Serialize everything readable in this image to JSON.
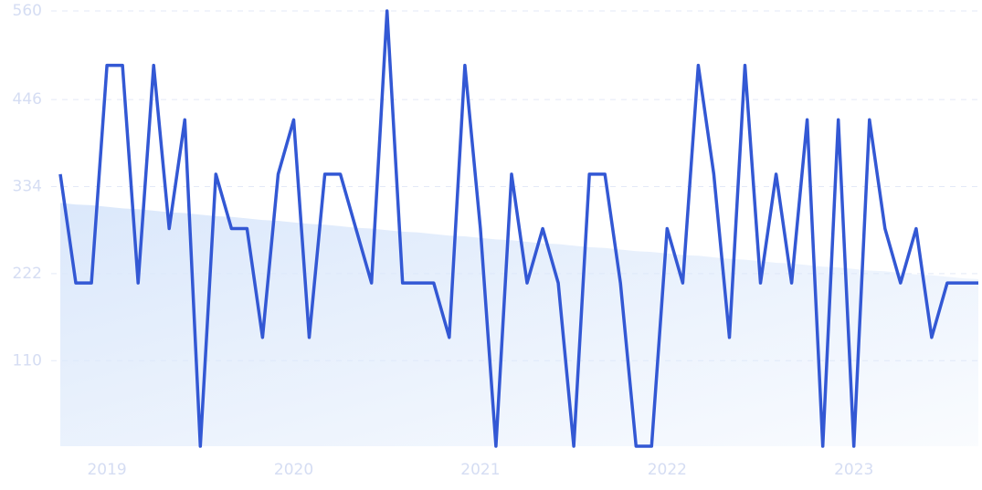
{
  "chart_data": {
    "type": "line",
    "categories": [
      null,
      null,
      null,
      "2019",
      null,
      null,
      null,
      null,
      null,
      null,
      null,
      null,
      null,
      null,
      null,
      "2020",
      null,
      null,
      null,
      null,
      null,
      null,
      null,
      null,
      null,
      null,
      null,
      "2021",
      null,
      null,
      null,
      null,
      null,
      null,
      null,
      null,
      null,
      null,
      null,
      "2022",
      null,
      null,
      null,
      null,
      null,
      null,
      null,
      null,
      null,
      null,
      null,
      "2023",
      null,
      null,
      null,
      null,
      null,
      null,
      null,
      null
    ],
    "series": [
      {
        "color": "#dbe8fb",
        "area": true,
        "values": [
          313,
          311,
          310,
          308,
          306,
          305,
          303,
          301,
          300,
          298,
          296,
          295,
          293,
          291,
          290,
          288,
          286,
          285,
          283,
          281,
          280,
          278,
          276,
          275,
          273,
          271,
          270,
          268,
          266,
          265,
          263,
          261,
          260,
          258,
          256,
          255,
          253,
          251,
          250,
          248,
          246,
          245,
          243,
          241,
          240,
          238,
          236,
          235,
          233,
          231,
          230,
          228,
          226,
          225,
          223,
          221,
          220,
          218,
          216,
          215
        ]
      },
      {
        "color": "#3358d4",
        "values": [
          350,
          210,
          210,
          490,
          490,
          210,
          490,
          280,
          420,
          0,
          350,
          280,
          280,
          140,
          350,
          420,
          140,
          350,
          350,
          280,
          210,
          560,
          210,
          210,
          210,
          140,
          490,
          280,
          0,
          350,
          210,
          280,
          210,
          0,
          350,
          350,
          210,
          0,
          0,
          280,
          210,
          490,
          350,
          140,
          490,
          210,
          350,
          210,
          420,
          0,
          420,
          0,
          420,
          280,
          210,
          280,
          140,
          210,
          210,
          210
        ]
      }
    ],
    "ylim": [
      0,
      560
    ],
    "yticks": [
      110,
      222,
      334,
      446,
      560
    ],
    "grid": true
  }
}
